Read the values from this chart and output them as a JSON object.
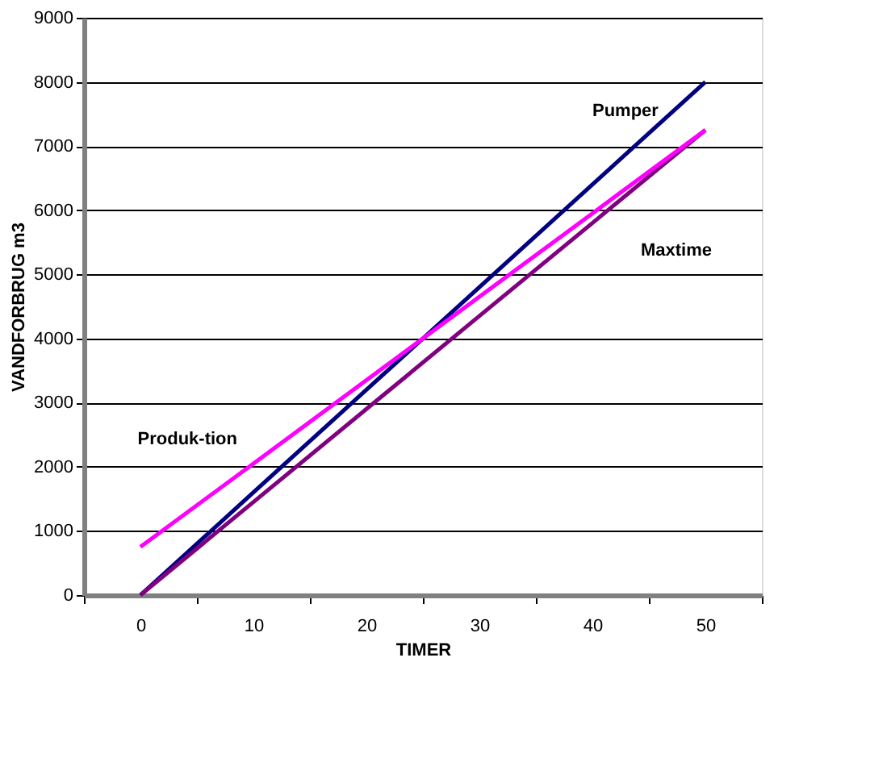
{
  "chart_data": {
    "type": "line",
    "xlabel": "TIMER",
    "ylabel": "VANDFORBRUG m3",
    "categories": [
      "0",
      "10",
      "20",
      "30",
      "40",
      "50"
    ],
    "series": [
      {
        "name": "Pumper",
        "color": "#000080",
        "values": [
          0,
          1600,
          3200,
          4800,
          6400,
          8000
        ]
      },
      {
        "name": "Maxtime",
        "color": "#800080",
        "values": [
          0,
          1450,
          2900,
          4350,
          5800,
          7250
        ]
      },
      {
        "name": "Produk-tion",
        "color": "#ff00ff",
        "values": [
          750,
          2050,
          3350,
          4650,
          5950,
          7250
        ]
      }
    ],
    "ylim": [
      0,
      9000
    ],
    "yticks": [
      0,
      1000,
      2000,
      3000,
      4000,
      5000,
      6000,
      7000,
      8000,
      9000
    ],
    "grid": "y",
    "legend": false,
    "marker": "none",
    "line_style": "solid"
  }
}
